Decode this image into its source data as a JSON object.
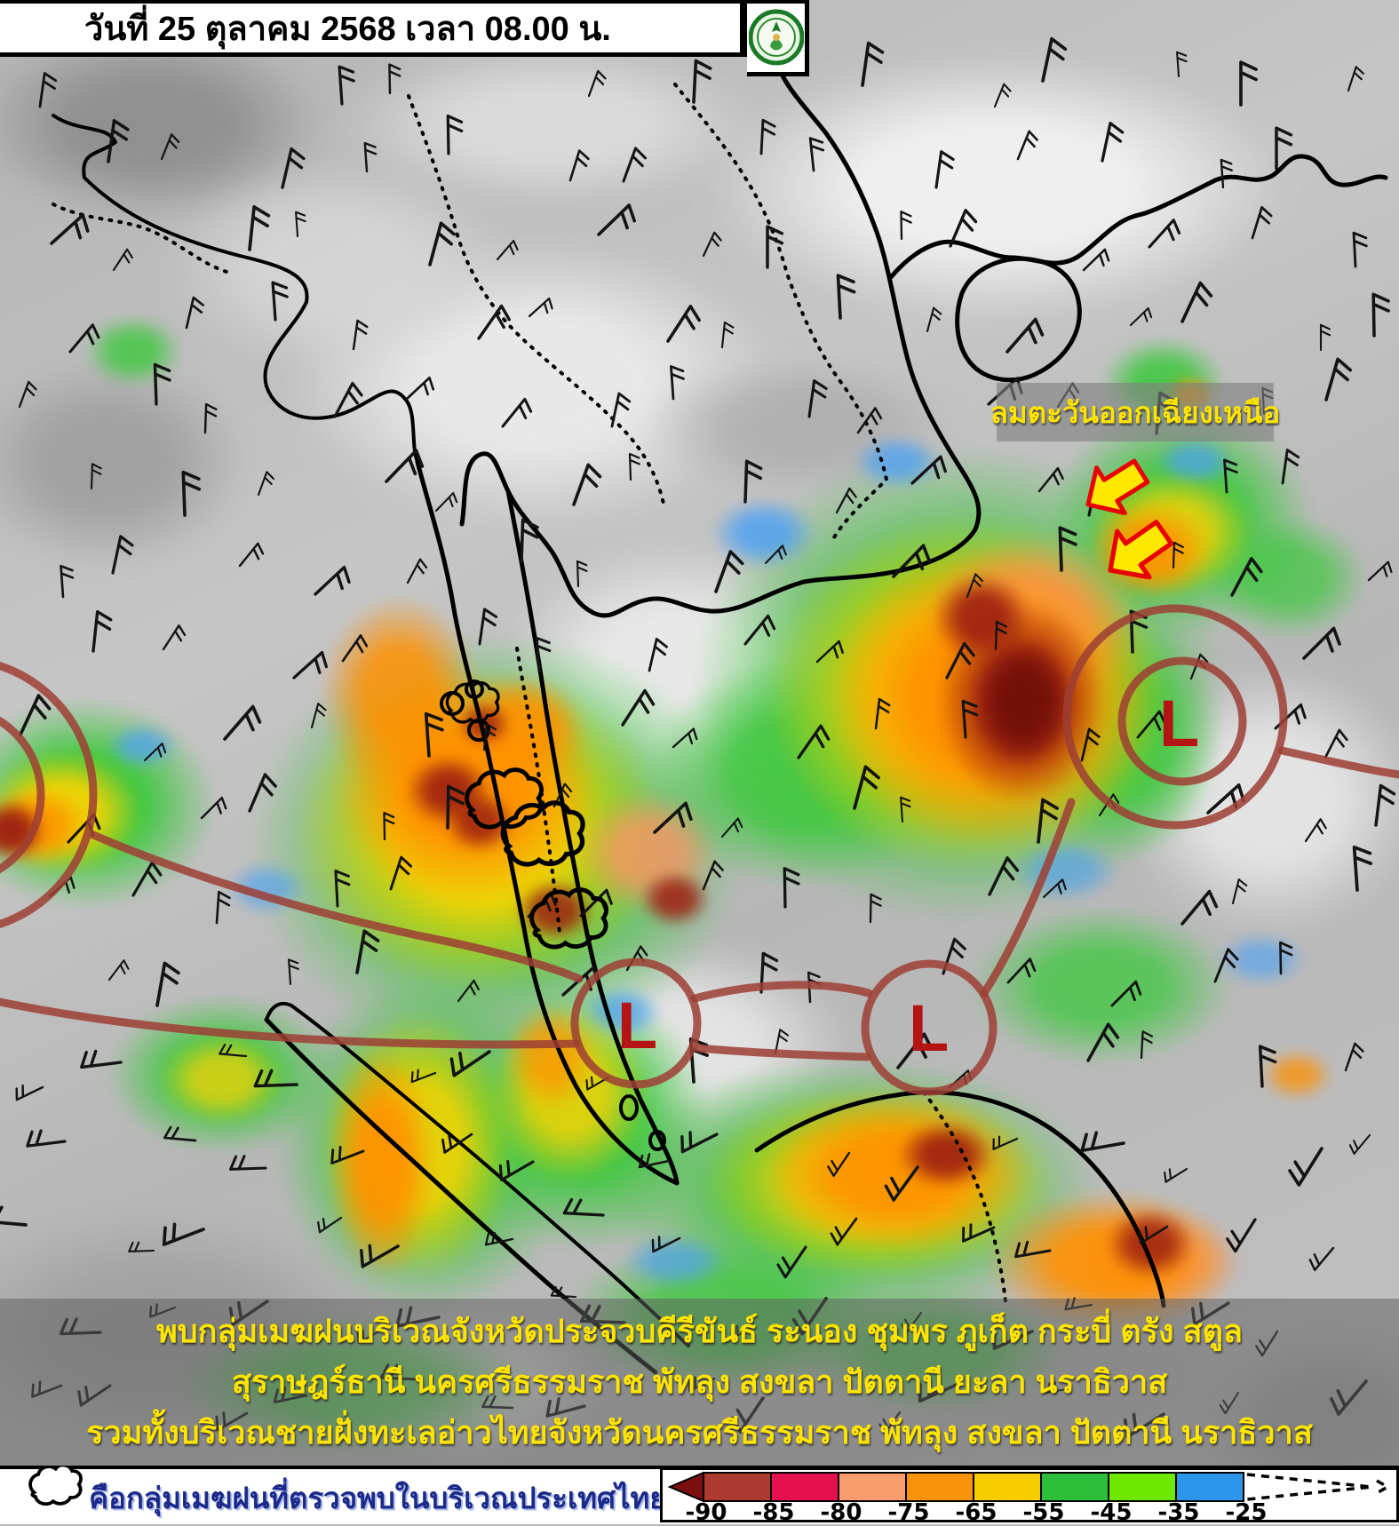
{
  "header": {
    "title": "วันที่ 25 ตุลาคม 2568 เวลา 08.00 น.",
    "logo_name": "thai-meteorological-department-emblem"
  },
  "map": {
    "wind_label": "ลมตะวันออกเฉียงเหนือ",
    "low_pressure_letter": "L",
    "captions": [
      "พบกลุ่มเมฆฝนบริเวณจังหวัดประจวบคีรีขันธ์ ระนอง ชุมพร ภูเก็ต กระบี่ ตรัง สตูล",
      "สุราษฎร์ธานี นครศรีธรรมราช พัทลุง สงขลา ปัตตานี ยะลา นราธิวาส",
      "รวมทั้งบริเวณชายฝั่งทะเลอ่าวไทยจังหวัดนครศรีธรรมราช พัทลุง สงขลา ปัตตานี นราธิวาส"
    ]
  },
  "legend": {
    "cloud_note": "คือกลุ่มเมฆฝนที่ตรวจพบในบริเวณประเทศไทย",
    "scale_ticks": [
      "-90",
      "-85",
      "-80",
      "-75",
      "-65",
      "-55",
      "-45",
      "-35",
      "-25"
    ],
    "scale_colors": [
      "#ac3a31",
      "#e5114e",
      "#f99c6d",
      "#f9940a",
      "#f6ce00",
      "#2dbe3c",
      "#6fe800",
      "#2d96ea"
    ],
    "scale_arrow_color": "#7c0f0f"
  },
  "colors": {
    "caption_text": "#ffe400",
    "wind_label_text": "#ffe400",
    "low_marker": "#b41414",
    "trough_line": "#9e3e34",
    "arrow_fill": "#ffe800",
    "arrow_stroke": "#e80000",
    "note_text": "#1b2a8a"
  }
}
